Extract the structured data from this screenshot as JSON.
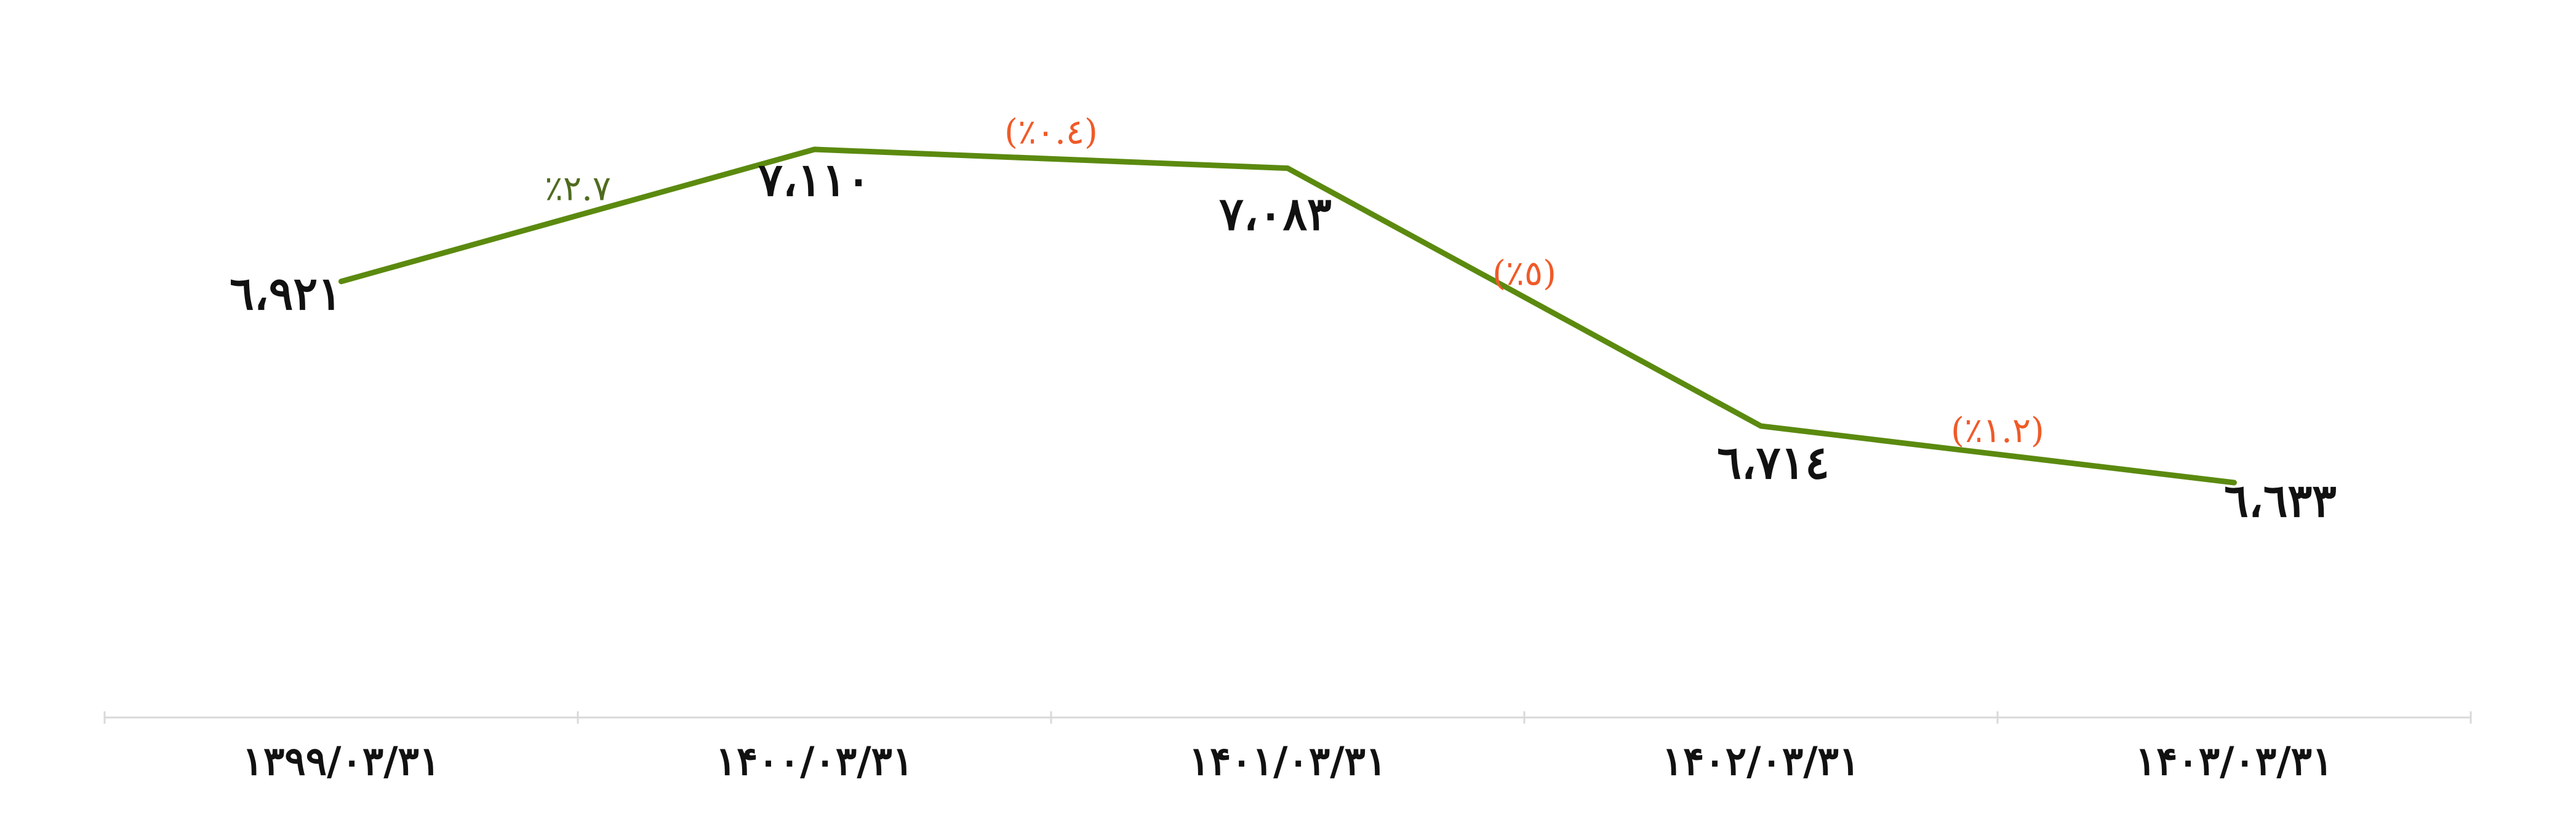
{
  "chart_data": {
    "type": "line",
    "title": "",
    "xlabel": "",
    "ylabel": "",
    "categories": [
      "۱۳۹۹/۰۳/۳۱",
      "۱۴۰۰/۰۳/۳۱",
      "۱۴۰۱/۰۳/۳۱",
      "۱۴۰۲/۰۳/۳۱",
      "۱۴۰۳/۰۳/۳۱"
    ],
    "series": [
      {
        "values": [
          6921,
          7110,
          7083,
          6714,
          6633
        ],
        "value_labels": [
          "٦،٩٢١",
          "٧،١١٠",
          "٧،٠٨٣",
          "٦،٧١٤",
          "٦،٦٣٣"
        ],
        "color": "#5b8a0f"
      }
    ],
    "changes": [
      {
        "label": "٪۲.۷",
        "value": 2.7,
        "color": "#4f6b1f"
      },
      {
        "label": "(٪۰.٤)",
        "value": -0.4,
        "color": "#f05a28"
      },
      {
        "label": "(٪٥)",
        "value": -5,
        "color": "#f05a28"
      },
      {
        "label": "(٪۱.۲)",
        "value": -1.2,
        "color": "#f05a28"
      }
    ],
    "ylim": [
      6300,
      7200
    ],
    "grid": false,
    "legend": "none"
  }
}
